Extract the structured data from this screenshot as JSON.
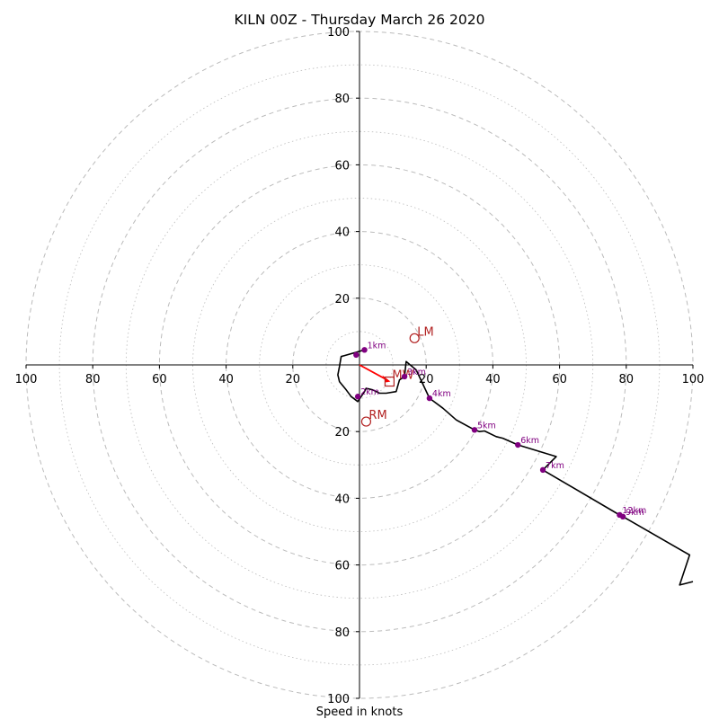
{
  "chart_data": {
    "type": "hodograph",
    "title": "KILN 00Z - Thursday March 26 2020",
    "xlabel": "Speed in knots",
    "range": [
      -100,
      100
    ],
    "ring_major_step": 20,
    "ring_minor_step": 10,
    "tick_labels": [
      "100",
      "80",
      "60",
      "40",
      "20",
      "20",
      "40",
      "60",
      "80",
      "100"
    ],
    "tick_values": [
      -100,
      -80,
      -60,
      -40,
      -20,
      20,
      40,
      60,
      80,
      100
    ],
    "colors": {
      "trace": "#000000",
      "points": "#800080",
      "motion": "#b22222",
      "mean_arrow": "#ff0000",
      "grid": "#bbbbbb"
    },
    "trace": [
      [
        1.5,
        4.5
      ],
      [
        -5.5,
        2.5
      ],
      [
        -6,
        -0.5
      ],
      [
        -6.5,
        -3
      ],
      [
        -6,
        -5
      ],
      [
        -4,
        -7.5
      ],
      [
        -2.5,
        -9.5
      ],
      [
        -0.5,
        -11
      ],
      [
        1.5,
        -8
      ],
      [
        2,
        -7
      ],
      [
        4,
        -7.5
      ],
      [
        6,
        -8.5
      ],
      [
        8,
        -8.5
      ],
      [
        11,
        -8
      ],
      [
        12,
        -4.5
      ],
      [
        13.5,
        -3.5
      ],
      [
        14,
        1
      ],
      [
        17,
        -1.5
      ],
      [
        21,
        -10
      ],
      [
        25,
        -13
      ],
      [
        29,
        -16.5
      ],
      [
        34.5,
        -19.5
      ],
      [
        36,
        -20
      ],
      [
        37.5,
        -19.8
      ],
      [
        41,
        -21.5
      ],
      [
        43,
        -22
      ],
      [
        47.5,
        -24
      ],
      [
        59,
        -27.5
      ],
      [
        55,
        -31.5
      ],
      [
        78,
        -45
      ],
      [
        79,
        -45.5
      ],
      [
        99,
        -57
      ],
      [
        96,
        -66
      ],
      [
        100,
        -65
      ]
    ],
    "heights": [
      {
        "label": "1km",
        "u": 1.5,
        "v": 4.5
      },
      {
        "label": "",
        "u": -1,
        "v": 3
      },
      {
        "label": "3km",
        "u": 13.5,
        "v": -3.5
      },
      {
        "label": "4km",
        "u": 21,
        "v": -10
      },
      {
        "label": "5km",
        "u": 34.5,
        "v": -19.5
      },
      {
        "label": "6km",
        "u": 47.5,
        "v": -24
      },
      {
        "label": "7km",
        "u": 55,
        "v": -31.5
      },
      {
        "label": "12km",
        "u": 78,
        "v": -45
      },
      {
        "label": "9km",
        "u": 79,
        "v": -45.5
      },
      {
        "label": "2km",
        "u": -0.5,
        "v": -9.5
      }
    ],
    "storm_motion": [
      {
        "label": "LM",
        "u": 16.5,
        "v": 8
      },
      {
        "label": "RM",
        "u": 2,
        "v": -17
      },
      {
        "label": "MW",
        "u": 9,
        "v": -5
      }
    ],
    "mean_wind_arrow": {
      "u": 9,
      "v": -5
    }
  }
}
